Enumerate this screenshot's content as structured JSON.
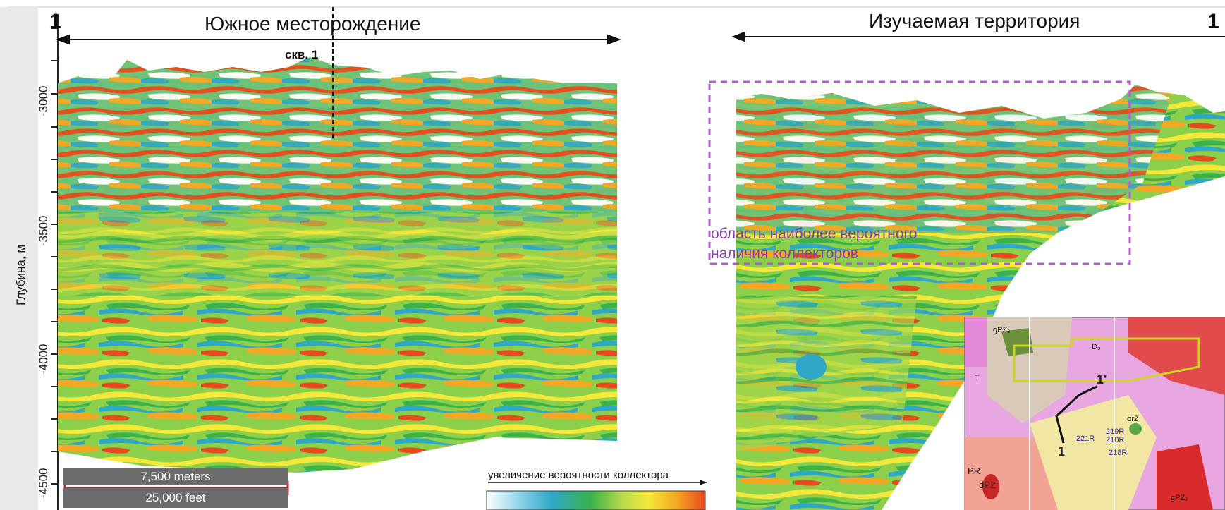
{
  "titles": {
    "left": "Южное месторождение",
    "right": "Изучаемая территория",
    "left_end": "1",
    "right_end": "1"
  },
  "well_label": "скв. 1",
  "y_axis": {
    "label": "Глубина, м",
    "ticks": [
      "-3000",
      "-3500",
      "-4000",
      "-4500"
    ]
  },
  "scale": {
    "meters": "7,500 meters",
    "feet": "25,000 feet"
  },
  "probability_legend": {
    "label": "увеличение вероятности коллектора",
    "colors": [
      "#ffffff",
      "#8fd3ea",
      "#2fa7c6",
      "#3bb34a",
      "#b8d94c",
      "#f4e83a",
      "#f5a623",
      "#e8491d"
    ]
  },
  "region_label": {
    "line1": "область наиболее вероятного",
    "line2": "наличия коллекторов"
  },
  "inset_map": {
    "labels": [
      "gPZ₃",
      "D₃",
      "T",
      "PR",
      "dPZ",
      "αrZ",
      "1'",
      "1",
      "221R",
      "219R",
      "210R",
      "218R",
      "gPZ₂"
    ]
  },
  "colors": {
    "dashed_box": "#b35ad6",
    "axis": "#222222",
    "frame": "#c9c9c9"
  }
}
